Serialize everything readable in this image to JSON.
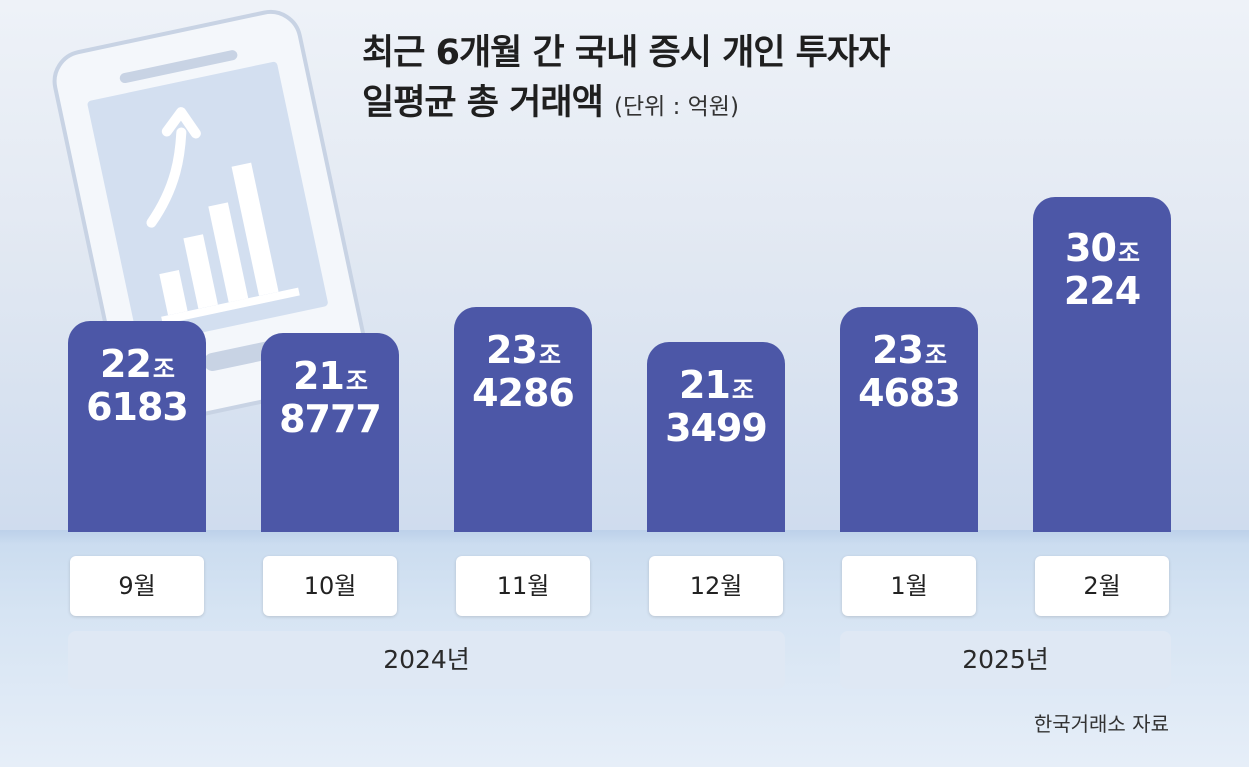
{
  "chart_data": {
    "type": "bar",
    "title_line1": "최근 6개월 간 국내 증시 개인 투자자",
    "title_line2": "일평균 총 거래액",
    "unit": "(단위 : 억원)",
    "categories": [
      "9월",
      "10월",
      "11월",
      "12월",
      "1월",
      "2월"
    ],
    "values": [
      226183,
      218777,
      234286,
      213499,
      234683,
      300224
    ],
    "labels": [
      {
        "jo": "22",
        "rest": "6183"
      },
      {
        "jo": "21",
        "rest": "8777"
      },
      {
        "jo": "23",
        "rest": "4286"
      },
      {
        "jo": "21",
        "rest": "3499"
      },
      {
        "jo": "23",
        "rest": "4683"
      },
      {
        "jo": "30",
        "rest": "224"
      }
    ],
    "jo_unit": "조",
    "year_groups": [
      {
        "label": "2024년",
        "months": [
          "9월",
          "10월",
          "11월",
          "12월"
        ]
      },
      {
        "label": "2025년",
        "months": [
          "1월",
          "2월"
        ]
      }
    ],
    "bar_color": "#4c57a7",
    "source": "한국거래소 자료"
  }
}
